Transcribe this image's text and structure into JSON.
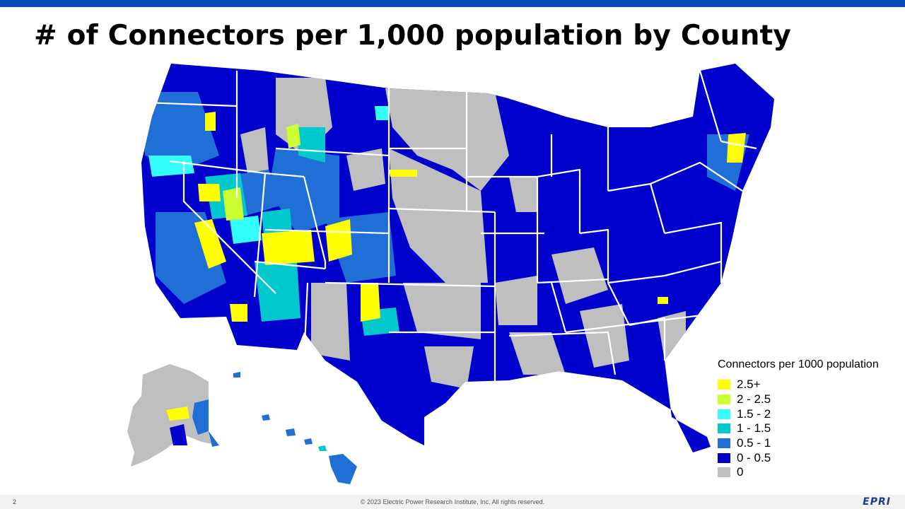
{
  "header": {
    "title": "# of Connectors per 1,000 population by County",
    "accent_color": "#0b49bd"
  },
  "map": {
    "subject": "United States counties",
    "border_color": "#ffffff",
    "county_line_color": "#9aa6d6"
  },
  "legend": {
    "title": "Connectors per 1000 population",
    "items": [
      {
        "label": "2.5+",
        "color": "#ffff00"
      },
      {
        "label": "2 - 2.5",
        "color": "#ccff33"
      },
      {
        "label": "1.5 - 2",
        "color": "#33ffff"
      },
      {
        "label": "1 - 1.5",
        "color": "#00c8cc"
      },
      {
        "label": "0.5 - 1",
        "color": "#1f6fd6"
      },
      {
        "label": "0 - 0.5",
        "color": "#0000cc"
      },
      {
        "label": "0",
        "color": "#bfbfbf"
      }
    ]
  },
  "footer": {
    "page_number": "2",
    "copyright": "© 2023 Electric Power Research Institute, Inc. All rights reserved.",
    "logo_text": "EPRI"
  }
}
